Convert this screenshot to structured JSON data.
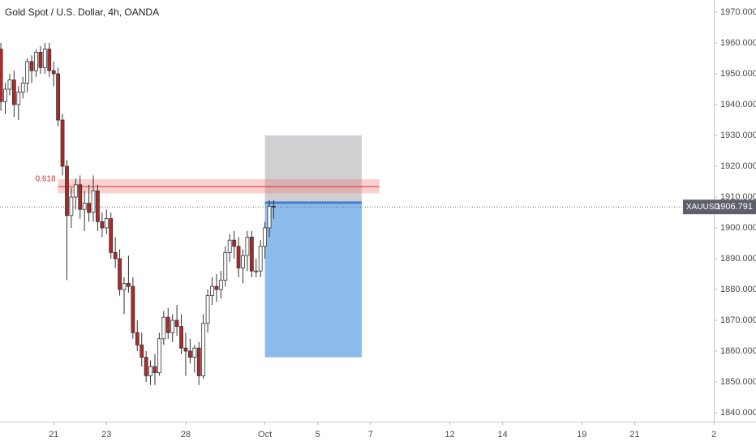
{
  "chart_data": {
    "type": "candlestick",
    "title": "Gold Spot / U.S. Dollar, 4h, OANDA",
    "symbol": "XAUUSD",
    "x": [
      0,
      1,
      2,
      3,
      4,
      5,
      6,
      7,
      8,
      9,
      10,
      11,
      12,
      13,
      14,
      15,
      16,
      17,
      18,
      19,
      20,
      21,
      22,
      23,
      24,
      25,
      26,
      27,
      28,
      29,
      30,
      31,
      32,
      33,
      34,
      35,
      36,
      37,
      38,
      39,
      40,
      41,
      42,
      43,
      44,
      45,
      46,
      47,
      48,
      49,
      50,
      51,
      52,
      53,
      54,
      55,
      56,
      57,
      58,
      59,
      60,
      61,
      62
    ],
    "open": [
      1958,
      1941,
      1945,
      1948,
      1940,
      1944,
      1947,
      1954,
      1951,
      1957,
      1952,
      1958,
      1951,
      1950,
      1935,
      1920,
      1904,
      1910,
      1914,
      1906,
      1908,
      1905,
      1912,
      1902,
      1900,
      1903,
      1892,
      1890,
      1880,
      1882,
      1881,
      1866,
      1862,
      1858,
      1852,
      1855,
      1853,
      1864,
      1871,
      1866,
      1870,
      1868,
      1861,
      1860,
      1858,
      1861,
      1852,
      1869,
      1878,
      1881,
      1880,
      1883,
      1892,
      1896,
      1894,
      1887,
      1891,
      1897,
      1886,
      1886,
      1894,
      1900,
      1907
    ],
    "high": [
      1960,
      1947,
      1950,
      1951,
      1946,
      1949,
      1955,
      1956,
      1958,
      1959,
      1960,
      1960,
      1954,
      1952,
      1937,
      1922,
      1913,
      1916,
      1917,
      1912,
      1914,
      1917,
      1914,
      1905,
      1906,
      1905,
      1897,
      1893,
      1884,
      1891,
      1884,
      1870,
      1866,
      1860,
      1857,
      1859,
      1866,
      1873,
      1874,
      1872,
      1875,
      1872,
      1866,
      1864,
      1862,
      1863,
      1872,
      1880,
      1884,
      1885,
      1886,
      1894,
      1898,
      1899,
      1897,
      1893,
      1899,
      1899,
      1890,
      1896,
      1902,
      1909,
      1909
    ],
    "low": [
      1938,
      1937,
      1943,
      1936,
      1935,
      1942,
      1944,
      1947,
      1949,
      1950,
      1950,
      1949,
      1946,
      1933,
      1917,
      1883,
      1900,
      1906,
      1903,
      1899,
      1902,
      1902,
      1899,
      1897,
      1898,
      1890,
      1887,
      1878,
      1872,
      1879,
      1864,
      1860,
      1855,
      1850,
      1849,
      1849,
      1852,
      1862,
      1864,
      1863,
      1865,
      1859,
      1852,
      1856,
      1853,
      1849,
      1851,
      1866,
      1875,
      1876,
      1877,
      1881,
      1889,
      1890,
      1884,
      1882,
      1886,
      1884,
      1884,
      1884,
      1890,
      1897,
      1903
    ],
    "close": [
      1941,
      1945,
      1948,
      1940,
      1944,
      1947,
      1954,
      1951,
      1957,
      1952,
      1958,
      1951,
      1950,
      1935,
      1920,
      1904,
      1910,
      1914,
      1906,
      1908,
      1905,
      1912,
      1902,
      1900,
      1903,
      1892,
      1890,
      1880,
      1882,
      1881,
      1866,
      1862,
      1858,
      1852,
      1855,
      1853,
      1864,
      1871,
      1866,
      1870,
      1868,
      1861,
      1860,
      1858,
      1861,
      1852,
      1869,
      1878,
      1881,
      1880,
      1883,
      1892,
      1896,
      1894,
      1887,
      1891,
      1897,
      1886,
      1886,
      1894,
      1900,
      1907,
      1906.791
    ],
    "up_color": "#ffffff",
    "down_color": "#b2282a",
    "xlim": [
      -0.2,
      162
    ],
    "xticks": [
      {
        "value": 12,
        "label": "21"
      },
      {
        "value": 24,
        "label": "23"
      },
      {
        "value": 42,
        "label": "28"
      },
      {
        "value": 60,
        "label": "Oct"
      },
      {
        "value": 72,
        "label": "5"
      },
      {
        "value": 84,
        "label": "7"
      },
      {
        "value": 102,
        "label": "12"
      },
      {
        "value": 114,
        "label": "14"
      },
      {
        "value": 132,
        "label": "19"
      },
      {
        "value": 144,
        "label": "21"
      },
      {
        "value": 162,
        "label": "2"
      }
    ],
    "ylim": [
      1837,
      1972
    ],
    "yticks": [
      {
        "value": 1840,
        "label": "1840.000"
      },
      {
        "value": 1850,
        "label": "1850.000"
      },
      {
        "value": 1860,
        "label": "1860.000"
      },
      {
        "value": 1870,
        "label": "1870.000"
      },
      {
        "value": 1880,
        "label": "1880.000"
      },
      {
        "value": 1890,
        "label": "1890.000"
      },
      {
        "value": 1900,
        "label": "1900.000"
      },
      {
        "value": 1910,
        "label": "1910.000"
      },
      {
        "value": 1920,
        "label": "1920.000"
      },
      {
        "value": 1930,
        "label": "1930.000"
      },
      {
        "value": 1940,
        "label": "1940.000"
      },
      {
        "value": 1950,
        "label": "1950.000"
      },
      {
        "value": 1960,
        "label": "1960.000"
      },
      {
        "value": 1970,
        "label": "1970.000"
      }
    ],
    "fib_level": {
      "label": "0.618",
      "price": 1913.4,
      "band": [
        1911.2,
        1915.8
      ],
      "x": [
        13,
        86
      ]
    },
    "position": {
      "stop": 1930,
      "entry": 1908.2,
      "target": 1858,
      "x": [
        60,
        82
      ]
    }
  }
}
